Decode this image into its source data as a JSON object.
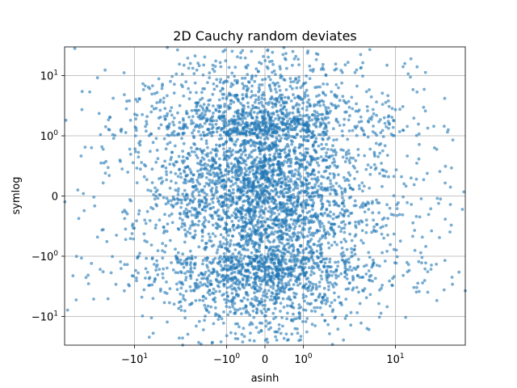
{
  "chart_data": {
    "type": "scatter",
    "title": "2D Cauchy random deviates",
    "xlabel": "asinh",
    "ylabel": "symlog",
    "x_scale": "asinh",
    "y_scale": "symlog",
    "xlim": [
      -50,
      50
    ],
    "ylim": [
      -30,
      30
    ],
    "grid": true,
    "marker_color": "#1f77b4",
    "marker_alpha": 0.6,
    "distribution": "2D Cauchy",
    "n_points": 5000,
    "x_ticks": [
      {
        "value": -10,
        "label": "−10",
        "exp": "1"
      },
      {
        "value": -1,
        "label": "−10",
        "exp": "0"
      },
      {
        "value": 0,
        "label": "0",
        "exp": ""
      },
      {
        "value": 1,
        "label": "10",
        "exp": "0"
      },
      {
        "value": 10,
        "label": "10",
        "exp": "1"
      }
    ],
    "y_ticks": [
      {
        "value": 10,
        "label": "10",
        "exp": "1"
      },
      {
        "value": 1,
        "label": "10",
        "exp": "0"
      },
      {
        "value": 0,
        "label": "0",
        "exp": ""
      },
      {
        "value": -1,
        "label": "−10",
        "exp": "0"
      },
      {
        "value": -10,
        "label": "−10",
        "exp": "1"
      }
    ]
  }
}
